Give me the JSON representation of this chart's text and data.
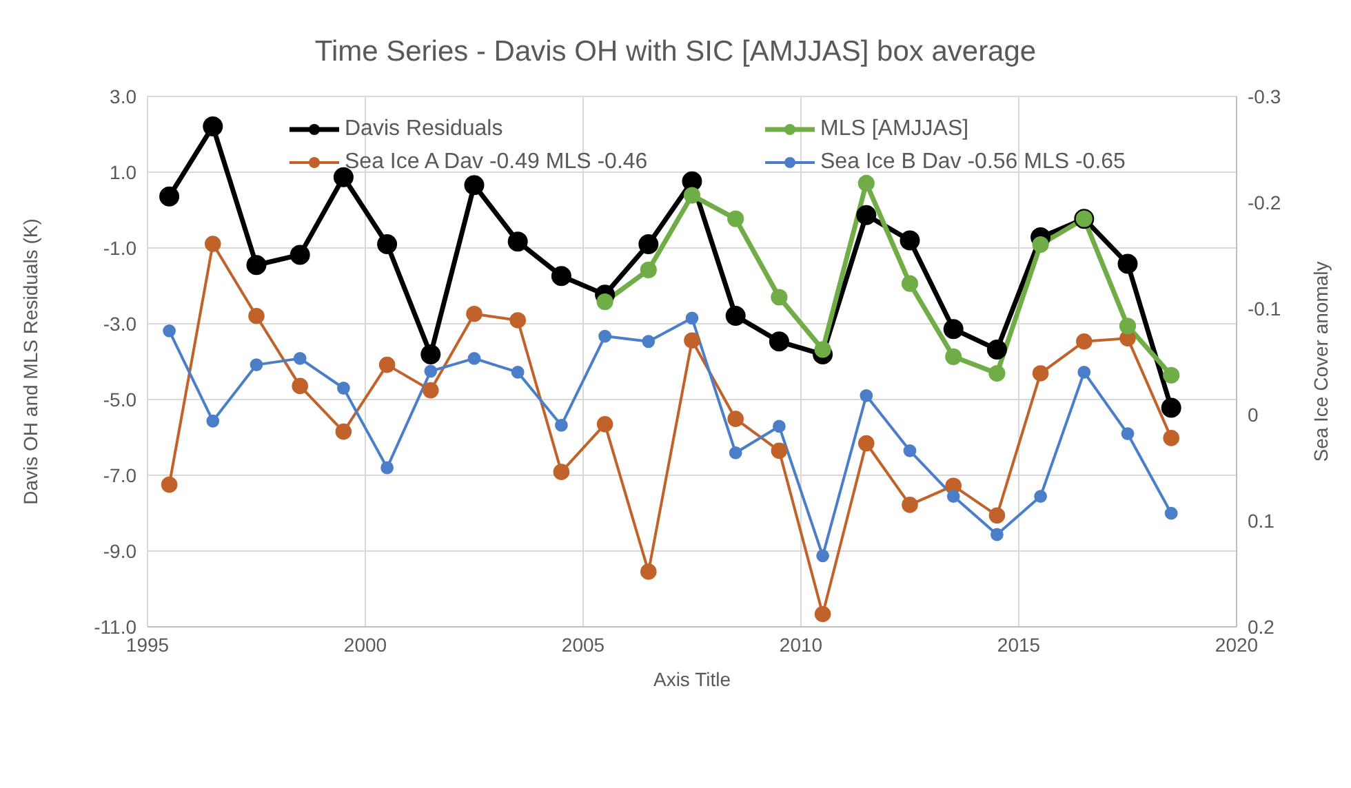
{
  "chart_data": {
    "type": "line",
    "title": "Time Series - Davis OH with SIC [AMJJAS] box average",
    "xlabel": "Axis Title",
    "ylabel": "Davis OH and MLS Residuals (K)",
    "y2label": "Sea Ice Cover anomaly",
    "x": [
      1995.5,
      1996.5,
      1997.5,
      1998.5,
      1999.5,
      2000.5,
      2001.5,
      2002.5,
      2003.5,
      2004.5,
      2005.5,
      2006.5,
      2007.5,
      2008.5,
      2009.5,
      2010.5,
      2011.5,
      2012.5,
      2013.5,
      2014.5,
      2015.5,
      2016.5,
      2017.5,
      2018.5
    ],
    "series": [
      {
        "name": "Davis Residuals",
        "color": "#000000",
        "values": [
          0.36,
          2.21,
          -1.45,
          -1.18,
          0.87,
          -0.9,
          -3.81,
          0.66,
          -0.83,
          -1.74,
          -2.23,
          -0.9,
          0.76,
          -2.79,
          -3.47,
          -3.81,
          -0.13,
          -0.8,
          -3.14,
          -3.68,
          -0.72,
          -0.23,
          -1.42,
          -5.22
        ]
      },
      {
        "name": "Sea Ice A Dav -0.49 MLS -0.46",
        "color": "#c0622a",
        "axis": "y2",
        "values": [
          0.066,
          -0.161,
          -0.093,
          -0.027,
          0.016,
          -0.047,
          -0.023,
          -0.095,
          -0.089,
          0.054,
          0.009,
          0.148,
          -0.07,
          0.004,
          0.034,
          0.188,
          0.027,
          0.085,
          0.067,
          0.095,
          -0.039,
          -0.069,
          -0.072,
          0.022
        ]
      },
      {
        "name": "MLS [AMJJAS]",
        "color": "#70ad47",
        "values": [
          null,
          null,
          null,
          null,
          null,
          null,
          null,
          null,
          null,
          null,
          -2.42,
          -1.58,
          0.39,
          -0.23,
          -2.3,
          -3.68,
          0.71,
          -1.94,
          -3.87,
          -4.31,
          -0.91,
          -0.23,
          -3.06,
          -4.36
        ]
      },
      {
        "name": "Sea Ice B Dav -0.56 MLS -0.65",
        "color": "#4a7ec8",
        "axis": "y2",
        "values": [
          -0.079,
          0.006,
          -0.047,
          -0.053,
          -0.025,
          0.05,
          -0.041,
          -0.053,
          -0.04,
          0.01,
          -0.074,
          -0.069,
          -0.091,
          0.036,
          0.011,
          0.133,
          -0.018,
          0.034,
          0.077,
          0.113,
          0.077,
          -0.04,
          0.018,
          0.093
        ]
      }
    ],
    "xlim": [
      1995,
      2020
    ],
    "xticks": [
      1995,
      2000,
      2005,
      2010,
      2015,
      2020
    ],
    "ylim": [
      -11,
      3
    ],
    "yticks": [
      {
        "value": -11,
        "label": "-11.0"
      },
      {
        "value": -9,
        "label": "-9.0"
      },
      {
        "value": -7,
        "label": "-7.0"
      },
      {
        "value": -5,
        "label": "-5.0"
      },
      {
        "value": -3,
        "label": "-3.0"
      },
      {
        "value": -1,
        "label": "-1.0"
      },
      {
        "value": 1,
        "label": "1.0"
      },
      {
        "value": 3,
        "label": "3.0"
      }
    ],
    "y2lim": [
      0.2,
      -0.3
    ],
    "y2ticks": [
      0.2,
      0.1,
      0,
      -0.1,
      -0.2,
      -0.3
    ],
    "grid": true,
    "legend": "top",
    "marker": "circle",
    "line_style": "solid"
  }
}
